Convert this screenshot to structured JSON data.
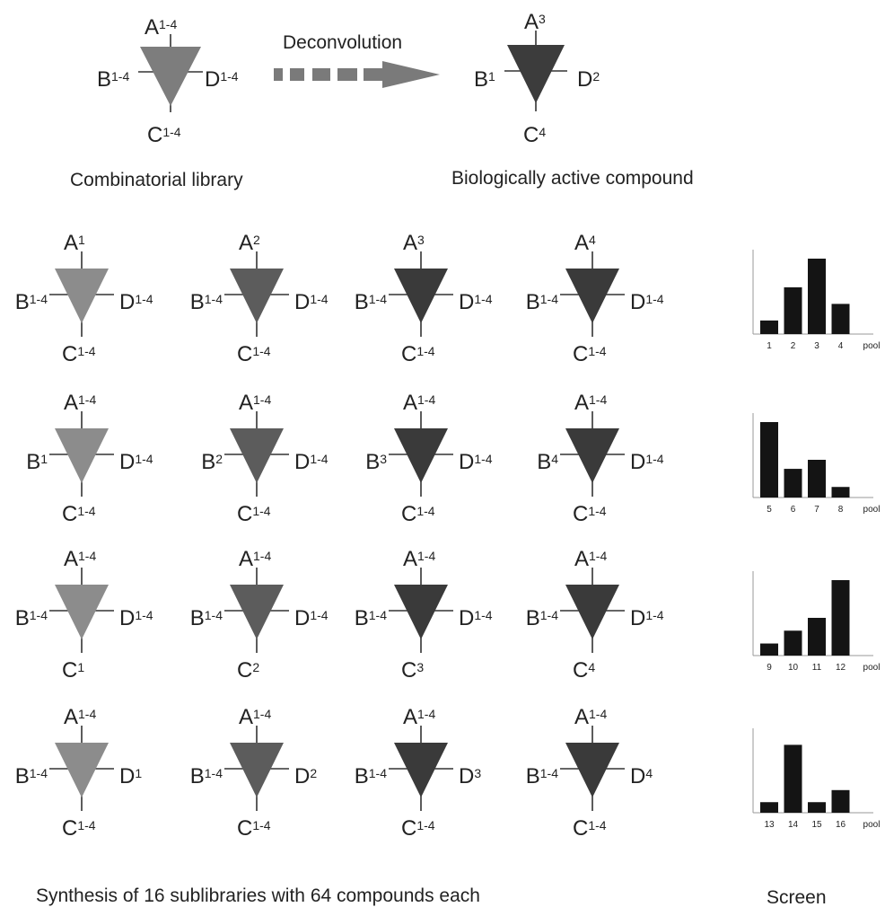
{
  "top": {
    "library": {
      "A": "A",
      "A_sub": "1-4",
      "B": "B",
      "B_sub": "1-4",
      "C": "C",
      "C_sub": "1-4",
      "D": "D",
      "D_sub": "1-4"
    },
    "arrow_label": "Deconvolution",
    "active": {
      "A": "A",
      "A_sub": "3",
      "B": "B",
      "B_sub": "1",
      "C": "C",
      "C_sub": "4",
      "D": "D",
      "D_sub": "2"
    },
    "library_caption": "Combinatorial library",
    "active_caption": "Biologically active compound"
  },
  "rows": [
    {
      "cells": [
        {
          "A": "A",
          "A_sub": "1",
          "B": "B",
          "B_sub": "1-4",
          "C": "C",
          "C_sub": "1-4",
          "D": "D",
          "D_sub": "1-4"
        },
        {
          "A": "A",
          "A_sub": "2",
          "B": "B",
          "B_sub": "1-4",
          "C": "C",
          "C_sub": "1-4",
          "D": "D",
          "D_sub": "1-4"
        },
        {
          "A": "A",
          "A_sub": "3",
          "B": "B",
          "B_sub": "1-4",
          "C": "C",
          "C_sub": "1-4",
          "D": "D",
          "D_sub": "1-4"
        },
        {
          "A": "A",
          "A_sub": "4",
          "B": "B",
          "B_sub": "1-4",
          "C": "C",
          "C_sub": "1-4",
          "D": "D",
          "D_sub": "1-4"
        }
      ]
    },
    {
      "cells": [
        {
          "A": "A",
          "A_sub": "1-4",
          "B": "B",
          "B_sub": "1",
          "C": "C",
          "C_sub": "1-4",
          "D": "D",
          "D_sub": "1-4"
        },
        {
          "A": "A",
          "A_sub": "1-4",
          "B": "B",
          "B_sub": "2",
          "C": "C",
          "C_sub": "1-4",
          "D": "D",
          "D_sub": "1-4"
        },
        {
          "A": "A",
          "A_sub": "1-4",
          "B": "B",
          "B_sub": "3",
          "C": "C",
          "C_sub": "1-4",
          "D": "D",
          "D_sub": "1-4"
        },
        {
          "A": "A",
          "A_sub": "1-4",
          "B": "B",
          "B_sub": "4",
          "C": "C",
          "C_sub": "1-4",
          "D": "D",
          "D_sub": "1-4"
        }
      ]
    },
    {
      "cells": [
        {
          "A": "A",
          "A_sub": "1-4",
          "B": "B",
          "B_sub": "1-4",
          "C": "C",
          "C_sub": "1",
          "D": "D",
          "D_sub": "1-4"
        },
        {
          "A": "A",
          "A_sub": "1-4",
          "B": "B",
          "B_sub": "1-4",
          "C": "C",
          "C_sub": "2",
          "D": "D",
          "D_sub": "1-4"
        },
        {
          "A": "A",
          "A_sub": "1-4",
          "B": "B",
          "B_sub": "1-4",
          "C": "C",
          "C_sub": "3",
          "D": "D",
          "D_sub": "1-4"
        },
        {
          "A": "A",
          "A_sub": "1-4",
          "B": "B",
          "B_sub": "1-4",
          "C": "C",
          "C_sub": "4",
          "D": "D",
          "D_sub": "1-4"
        }
      ]
    },
    {
      "cells": [
        {
          "A": "A",
          "A_sub": "1-4",
          "B": "B",
          "B_sub": "1-4",
          "C": "C",
          "C_sub": "1-4",
          "D": "D",
          "D_sub": "1"
        },
        {
          "A": "A",
          "A_sub": "1-4",
          "B": "B",
          "B_sub": "1-4",
          "C": "C",
          "C_sub": "1-4",
          "D": "D",
          "D_sub": "2"
        },
        {
          "A": "A",
          "A_sub": "1-4",
          "B": "B",
          "B_sub": "1-4",
          "C": "C",
          "C_sub": "1-4",
          "D": "D",
          "D_sub": "3"
        },
        {
          "A": "A",
          "A_sub": "1-4",
          "B": "B",
          "B_sub": "1-4",
          "C": "C",
          "C_sub": "1-4",
          "D": "D",
          "D_sub": "4"
        }
      ]
    }
  ],
  "chart_data": [
    {
      "type": "bar",
      "categories": [
        "1",
        "2",
        "3",
        "4",
        "pool"
      ],
      "values": [
        0.18,
        0.62,
        1.0,
        0.4,
        0
      ]
    },
    {
      "type": "bar",
      "categories": [
        "5",
        "6",
        "7",
        "8",
        "pool"
      ],
      "values": [
        1.0,
        0.38,
        0.5,
        0.14,
        0
      ]
    },
    {
      "type": "bar",
      "categories": [
        "9",
        "10",
        "11",
        "12",
        "pool"
      ],
      "values": [
        0.16,
        0.33,
        0.5,
        1.0,
        0
      ]
    },
    {
      "type": "bar",
      "categories": [
        "13",
        "14",
        "15",
        "16",
        "pool"
      ],
      "values": [
        0.14,
        0.9,
        0.14,
        0.3,
        0
      ]
    }
  ],
  "bottom": {
    "synthesis_caption": "Synthesis of 16 sublibraries with 64 compounds each",
    "screen_caption": "Screen"
  },
  "colors": {
    "light_triangle": "#8c8c8c",
    "mid_triangle": "#5c5c5c",
    "dark_triangle": "#3a3a3a",
    "bar": "#141414",
    "arrow": "#7a7a7a"
  }
}
